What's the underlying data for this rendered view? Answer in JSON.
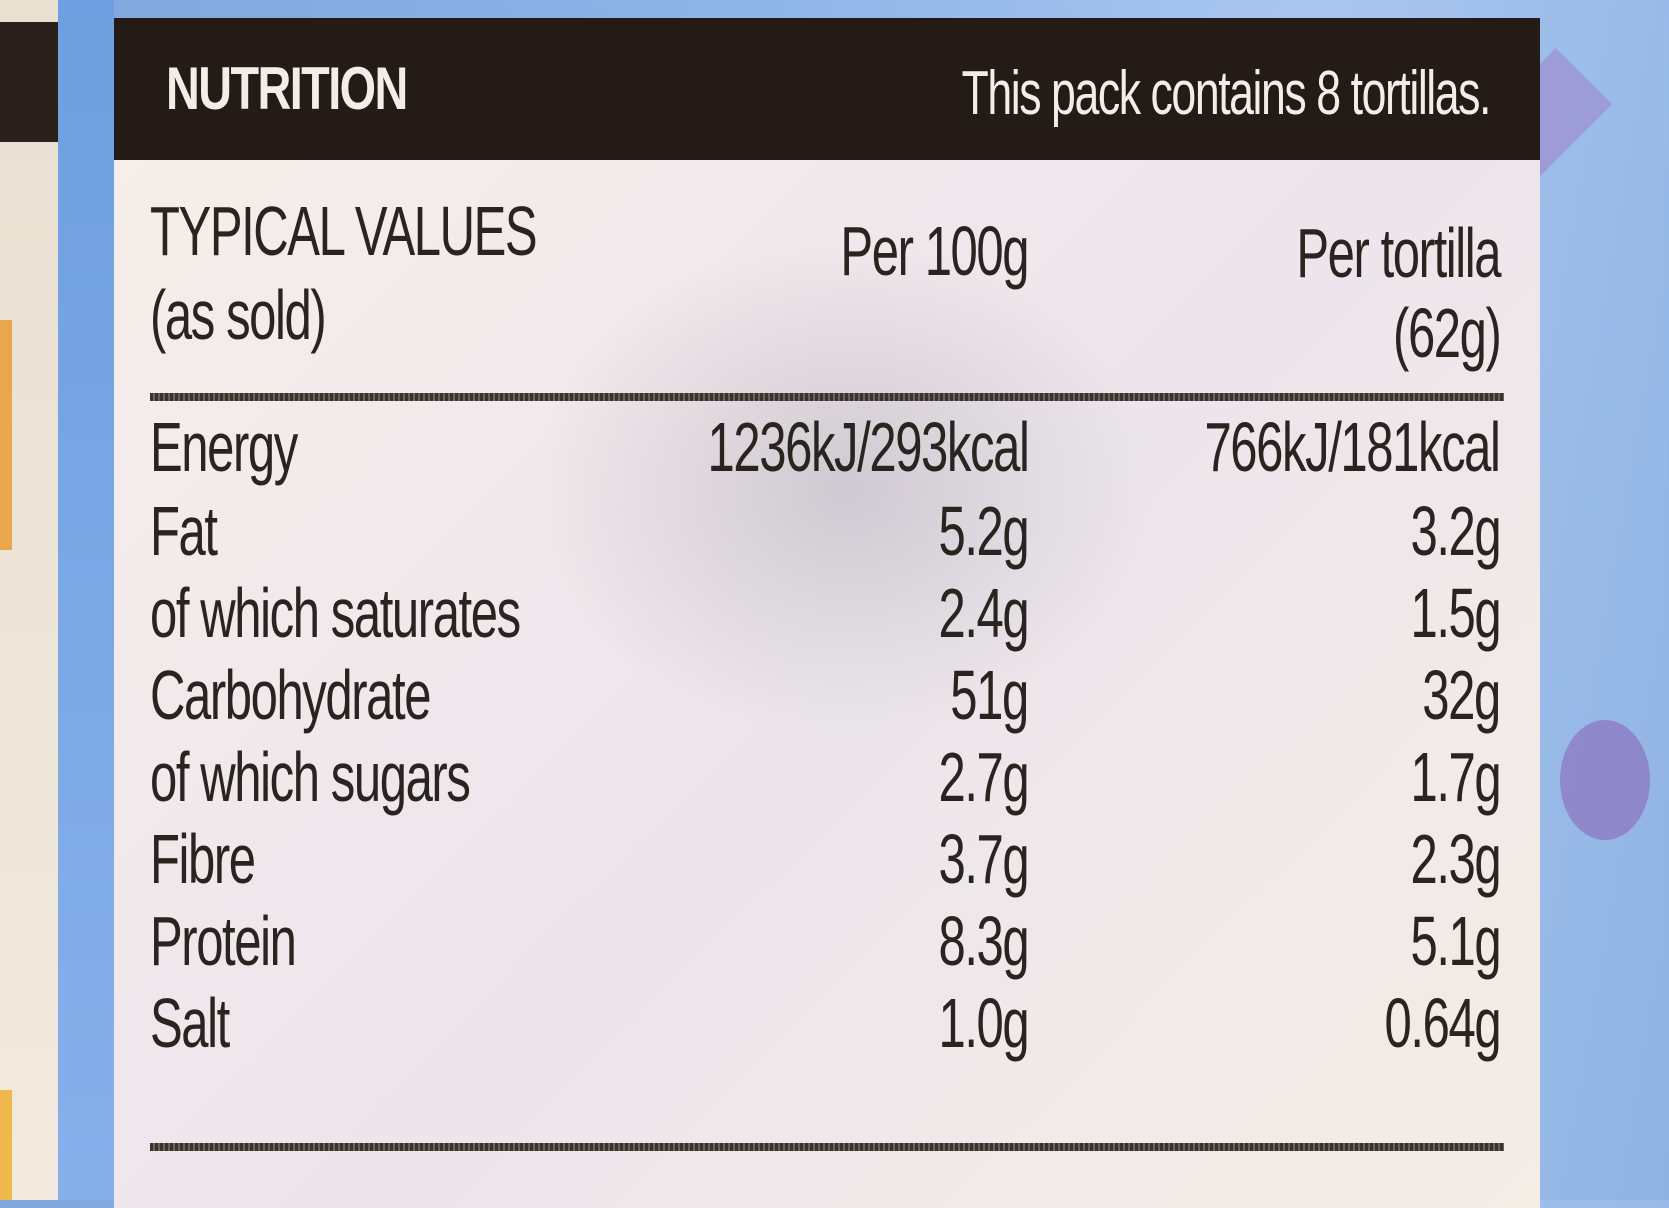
{
  "header": {
    "title": "NUTRITION",
    "pack_info": "This pack contains 8 tortillas."
  },
  "table": {
    "label_header_line1": "TYPICAL VALUES",
    "label_header_line2": "(as sold)",
    "col1_header": "Per 100g",
    "col2_header_line1": "Per tortilla",
    "col2_header_line2": "(62g)",
    "rows": [
      {
        "label": "Energy",
        "per100": "1236kJ/293kcal",
        "per_tortilla": "766kJ/181kcal"
      },
      {
        "label": "Fat",
        "per100": "5.2g",
        "per_tortilla": "3.2g"
      },
      {
        "label": "of which saturates",
        "per100": "2.4g",
        "per_tortilla": "1.5g"
      },
      {
        "label": "Carbohydrate",
        "per100": "51g",
        "per_tortilla": "32g"
      },
      {
        "label": "of which sugars",
        "per100": "2.7g",
        "per_tortilla": "1.7g"
      },
      {
        "label": "Fibre",
        "per100": "3.7g",
        "per_tortilla": "2.3g"
      },
      {
        "label": "Protein",
        "per100": "8.3g",
        "per_tortilla": "5.1g"
      },
      {
        "label": "Salt",
        "per100": "1.0g",
        "per_tortilla": "0.64g"
      }
    ]
  },
  "colors": {
    "header_bg": "#241b16",
    "label_bg": "#f3ede8",
    "packaging_blue": "#8eb4e8",
    "text": "#2a2420"
  }
}
